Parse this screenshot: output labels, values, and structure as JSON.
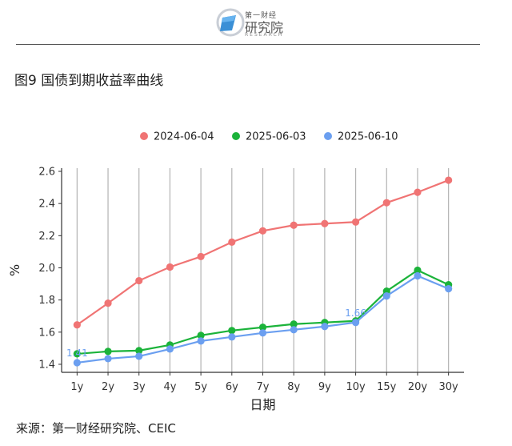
{
  "header": {
    "logo_top": "第一财经",
    "logo_main": "研究院",
    "logo_sub": "RESEARCH"
  },
  "figure": {
    "title": "图9 国债到期收益率曲线",
    "source": "来源：第一财经研究院、CEIC"
  },
  "chart_data": {
    "type": "line",
    "categories": [
      "1y",
      "2y",
      "3y",
      "4y",
      "5y",
      "6y",
      "7y",
      "8y",
      "9y",
      "10y",
      "15y",
      "20y",
      "30y"
    ],
    "series": [
      {
        "name": "2024-06-04",
        "color": "#f07474",
        "values": [
          1.645,
          1.78,
          1.92,
          2.005,
          2.07,
          2.16,
          2.23,
          2.265,
          2.275,
          2.285,
          2.405,
          2.47,
          2.545
        ]
      },
      {
        "name": "2025-06-03",
        "color": "#1bb33a",
        "values": [
          1.465,
          1.48,
          1.485,
          1.52,
          1.58,
          1.61,
          1.63,
          1.65,
          1.66,
          1.67,
          1.855,
          1.985,
          1.895
        ]
      },
      {
        "name": "2025-06-10",
        "color": "#6b9ff0",
        "values": [
          1.41,
          1.435,
          1.45,
          1.495,
          1.545,
          1.57,
          1.595,
          1.615,
          1.635,
          1.66,
          1.825,
          1.95,
          1.87
        ]
      }
    ],
    "annotations": [
      {
        "series": 2,
        "index": 0,
        "text": "1.41"
      },
      {
        "series": 2,
        "index": 9,
        "text": "1.66"
      }
    ],
    "xlabel": "日期",
    "ylabel": "%",
    "ylim": [
      1.35,
      2.62
    ],
    "yticks": [
      "1.4",
      "1.6",
      "1.8",
      "2.0",
      "2.2",
      "2.4",
      "2.6"
    ],
    "grid": "vertical",
    "legend_position": "top"
  }
}
